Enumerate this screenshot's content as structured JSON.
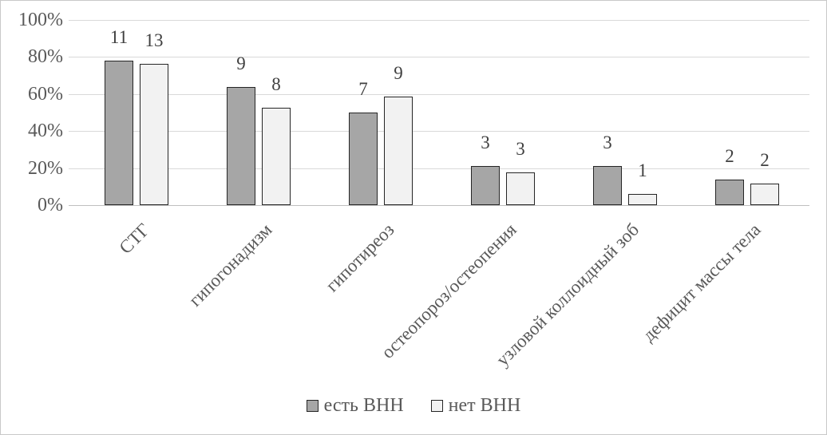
{
  "chart_data": {
    "type": "bar",
    "title": "",
    "xlabel": "",
    "ylabel": "",
    "categories": [
      "СТГ",
      "гипогонадизм",
      "гипотиреоз",
      "остеопороз/остеопения",
      "узловой коллоидный зоб",
      "дефицит массы тела"
    ],
    "series": [
      {
        "name": "есть ВНН",
        "fill": "#a6a6a6",
        "bar_labels": [
          11,
          9,
          7,
          3,
          3,
          2
        ],
        "values_percent": [
          78,
          64,
          50,
          21,
          21,
          14
        ]
      },
      {
        "name": "нет ВНН",
        "fill": "#f2f2f2",
        "bar_labels": [
          13,
          8,
          9,
          3,
          1,
          2
        ],
        "values_percent": [
          76.5,
          52.5,
          58.5,
          17.5,
          6,
          11.5
        ]
      }
    ],
    "y_axis": {
      "ticks": [
        "0%",
        "20%",
        "40%",
        "60%",
        "80%",
        "100%"
      ],
      "min": 0,
      "max": 100,
      "tick_step": 20,
      "grid": true
    },
    "legend": {
      "position": "bottom",
      "entries": [
        "есть ВНН",
        "нет ВНН"
      ]
    },
    "colors": {
      "bar_border": "#262626",
      "gridline": "#d9d9d9",
      "axis_line": "#bfbfbf",
      "tick_text": "#595959",
      "value_label_text": "#404040",
      "background": "#ffffff",
      "frame_border": "#c9c9c9"
    }
  }
}
